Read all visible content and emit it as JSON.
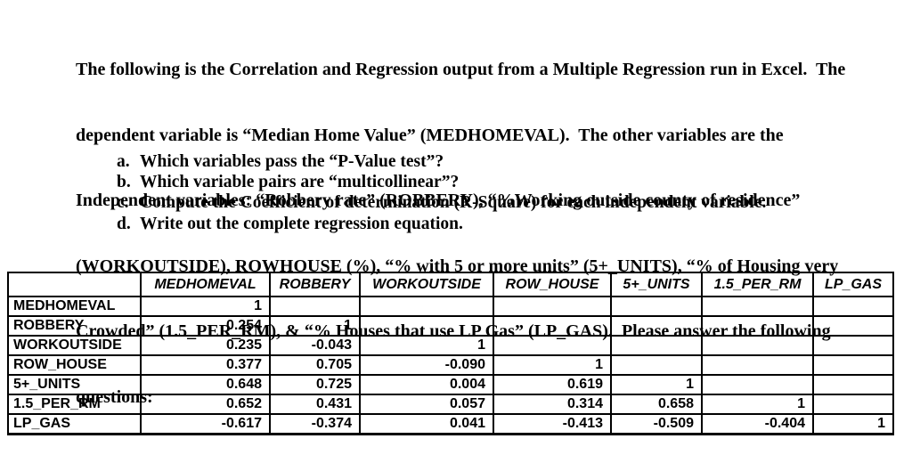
{
  "intro": {
    "lines": [
      "The following is the Correlation and Regression output from a Multiple Regression run in Excel.  The",
      "dependent variable is “Median Home Value” (MEDHOMEVAL).  The other variables are the",
      "Independent variables: “Robbery rate” (ROBBERY), “%Working outside county of residence”",
      "(WORKOUTSIDE), ROWHOUSE (%), “% with 5 or more units” (5+_UNITS), “% of Housing very",
      "Crowded” (1.5_PER_RM), & “% Houses that use LP Gas” (LP_GAS).  Please answer the following",
      "questions:"
    ]
  },
  "questions": [
    {
      "letter": "a.",
      "text": "Which variables pass the “P-Value test”?"
    },
    {
      "letter": "b.",
      "text": "Which variable pairs are “multicollinear”?"
    },
    {
      "letter": "c.",
      "text": "Compute the Coefficient of determination (R-Square) for each independent variable."
    },
    {
      "letter": "d.",
      "text": "Write out the complete regression equation."
    }
  ],
  "correlation_table": {
    "columns": [
      "",
      "MEDHOMEVAL",
      "ROBBERY",
      "WORKOUTSIDE",
      "ROW_HOUSE",
      "5+_UNITS",
      "1.5_PER_RM",
      "LP_GAS"
    ],
    "rows": [
      {
        "label": "MEDHOMEVAL",
        "values": [
          "1",
          "",
          "",
          "",
          "",
          "",
          ""
        ]
      },
      {
        "label": "ROBBERY",
        "values": [
          "0.254",
          "1",
          "",
          "",
          "",
          "",
          ""
        ]
      },
      {
        "label": "WORKOUTSIDE",
        "values": [
          "0.235",
          "-0.043",
          "1",
          "",
          "",
          "",
          ""
        ]
      },
      {
        "label": "ROW_HOUSE",
        "values": [
          "0.377",
          "0.705",
          "-0.090",
          "1",
          "",
          "",
          ""
        ]
      },
      {
        "label": "5+_UNITS",
        "values": [
          "0.648",
          "0.725",
          "0.004",
          "0.619",
          "1",
          "",
          ""
        ]
      },
      {
        "label": "1.5_PER_RM",
        "values": [
          "0.652",
          "0.431",
          "0.057",
          "0.314",
          "0.658",
          "1",
          ""
        ]
      },
      {
        "label": "LP_GAS",
        "values": [
          "-0.617",
          "-0.374",
          "0.041",
          "-0.413",
          "-0.509",
          "-0.404",
          "1"
        ]
      }
    ]
  },
  "colors": {
    "text": "#000000",
    "background": "#ffffff",
    "table_border": "#000000"
  }
}
